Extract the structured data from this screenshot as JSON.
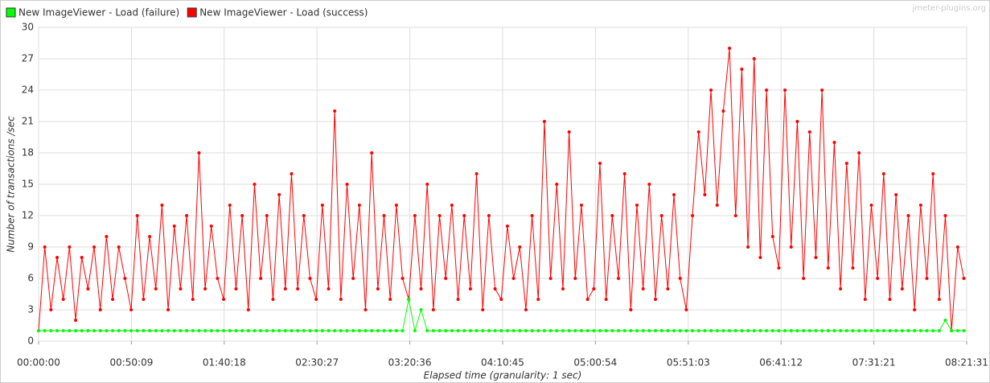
{
  "chart_data": {
    "type": "line",
    "legend": "top-left",
    "watermark": "jmeter-plugins.org",
    "xlabel": "Elapsed time (granularity: 1 sec)",
    "ylabel": "Number of transactions /sec",
    "xlim": [
      0,
      30091
    ],
    "ylim": [
      0,
      30
    ],
    "yticks": [
      0,
      3,
      6,
      9,
      12,
      15,
      18,
      21,
      24,
      27,
      30
    ],
    "xticks": [
      {
        "value": 0,
        "label": "00:00:00"
      },
      {
        "value": 3009,
        "label": "00:50:09"
      },
      {
        "value": 6018,
        "label": "01:40:18"
      },
      {
        "value": 9027,
        "label": "02:30:27"
      },
      {
        "value": 12036,
        "label": "03:20:36"
      },
      {
        "value": 15045,
        "label": "04:10:45"
      },
      {
        "value": 18054,
        "label": "05:00:54"
      },
      {
        "value": 21063,
        "label": "05:51:03"
      },
      {
        "value": 24072,
        "label": "06:41:12"
      },
      {
        "value": 27081,
        "label": "07:31:21"
      },
      {
        "value": 30091,
        "label": "08:21:31"
      }
    ],
    "grid": true,
    "x": [
      0,
      200,
      400,
      600,
      800,
      1000,
      1200,
      1400,
      1600,
      1800,
      2000,
      2200,
      2400,
      2600,
      2800,
      3000,
      3200,
      3400,
      3600,
      3800,
      4000,
      4200,
      4400,
      4600,
      4800,
      5000,
      5200,
      5400,
      5600,
      5800,
      6000,
      6200,
      6400,
      6600,
      6800,
      7000,
      7200,
      7400,
      7600,
      7800,
      8000,
      8200,
      8400,
      8600,
      8800,
      9000,
      9200,
      9400,
      9600,
      9800,
      10000,
      10200,
      10400,
      10600,
      10800,
      11000,
      11200,
      11400,
      11600,
      11800,
      12000,
      12200,
      12400,
      12600,
      12800,
      13000,
      13200,
      13400,
      13600,
      13800,
      14000,
      14200,
      14400,
      14600,
      14800,
      15000,
      15200,
      15400,
      15600,
      15800,
      16000,
      16200,
      16400,
      16600,
      16800,
      17000,
      17200,
      17400,
      17600,
      17800,
      18000,
      18200,
      18400,
      18600,
      18800,
      19000,
      19200,
      19400,
      19600,
      19800,
      20000,
      20200,
      20400,
      20600,
      20800,
      21000,
      21200,
      21400,
      21600,
      21800,
      22000,
      22200,
      22400,
      22600,
      22800,
      23000,
      23200,
      23400,
      23600,
      23800,
      24000,
      24200,
      24400,
      24600,
      24800,
      25000,
      25200,
      25400,
      25600,
      25800,
      26000,
      26200,
      26400,
      26600,
      26800,
      27000,
      27200,
      27400,
      27600,
      27800,
      28000,
      28200,
      28400,
      28600,
      28800,
      29000,
      29200,
      29400,
      29600,
      29800,
      30000
    ],
    "series": [
      {
        "name": "New ImageViewer - Load (failure)",
        "color": "#00ff00",
        "values": [
          1,
          1,
          1,
          1,
          1,
          1,
          1,
          1,
          1,
          1,
          1,
          1,
          1,
          1,
          1,
          1,
          1,
          1,
          1,
          1,
          1,
          1,
          1,
          1,
          1,
          1,
          1,
          1,
          1,
          1,
          1,
          1,
          1,
          1,
          1,
          1,
          1,
          1,
          1,
          1,
          1,
          1,
          1,
          1,
          1,
          1,
          1,
          1,
          1,
          1,
          1,
          1,
          1,
          1,
          1,
          1,
          1,
          1,
          1,
          1,
          4,
          1,
          3,
          1,
          1,
          1,
          1,
          1,
          1,
          1,
          1,
          1,
          1,
          1,
          1,
          1,
          1,
          1,
          1,
          1,
          1,
          1,
          1,
          1,
          1,
          1,
          1,
          1,
          1,
          1,
          1,
          1,
          1,
          1,
          1,
          1,
          1,
          1,
          1,
          1,
          1,
          1,
          1,
          1,
          1,
          1,
          1,
          1,
          1,
          1,
          1,
          1,
          1,
          1,
          1,
          1,
          1,
          1,
          1,
          1,
          1,
          1,
          1,
          1,
          1,
          1,
          1,
          1,
          1,
          1,
          1,
          1,
          1,
          1,
          1,
          1,
          1,
          1,
          1,
          1,
          1,
          1,
          1,
          1,
          1,
          1,
          1,
          2,
          1,
          1,
          1
        ]
      },
      {
        "name": "New ImageViewer - Load (success)",
        "color": "#ff0000",
        "values": [
          1,
          9,
          3,
          8,
          4,
          9,
          2,
          8,
          5,
          9,
          3,
          10,
          4,
          9,
          6,
          3,
          12,
          4,
          10,
          5,
          13,
          3,
          11,
          5,
          12,
          4,
          18,
          5,
          11,
          6,
          4,
          13,
          5,
          12,
          3,
          15,
          6,
          12,
          4,
          14,
          5,
          16,
          5,
          12,
          6,
          4,
          13,
          5,
          22,
          4,
          15,
          6,
          13,
          3,
          18,
          5,
          12,
          4,
          13,
          6,
          4,
          12,
          5,
          15,
          3,
          12,
          6,
          13,
          4,
          12,
          5,
          16,
          3,
          12,
          5,
          4,
          11,
          6,
          9,
          3,
          12,
          4,
          21,
          6,
          15,
          5,
          20,
          6,
          13,
          4,
          5,
          17,
          4,
          12,
          6,
          16,
          3,
          13,
          5,
          15,
          4,
          12,
          5,
          14,
          6,
          3,
          12,
          20,
          14,
          24,
          13,
          22,
          28,
          12,
          26,
          9,
          27,
          8,
          24,
          10,
          7,
          24,
          9,
          21,
          6,
          20,
          8,
          24,
          7,
          19,
          5,
          17,
          7,
          18,
          4,
          13,
          6,
          16,
          4,
          14,
          5,
          12,
          3,
          13,
          6,
          16,
          4,
          12,
          1,
          9,
          6
        ]
      }
    ]
  }
}
